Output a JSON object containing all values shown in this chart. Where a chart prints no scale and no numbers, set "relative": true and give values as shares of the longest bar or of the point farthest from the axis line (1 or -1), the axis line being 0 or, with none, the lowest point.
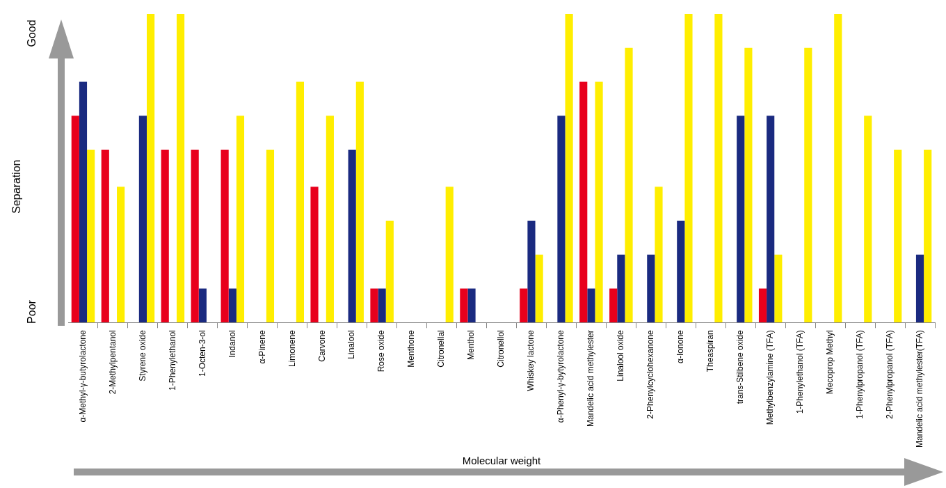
{
  "chart_data": {
    "type": "bar",
    "relative": true,
    "xlabel": "Molecular weight",
    "ylabel": "Separation",
    "annotations": [
      "Good",
      "Poor"
    ],
    "grid": false,
    "legend": false,
    "categories": [
      "α-Methyl-γ-butyrolactone",
      "2-Methylpentanol",
      "Styrene oxide",
      "1-Phenylethanol",
      "1-Octen-3-ol",
      "Indanol",
      "α-Pinene",
      "Limonene",
      "Carvone",
      "Linalool",
      "Rose oxide",
      "Menthone",
      "Citronellal",
      "Menthol",
      "Citronellol",
      "Whiskey lactone",
      "α-Phenyl-γ-bytyrolactone",
      "Mandelic acid methylester",
      "Linalool oxide",
      "2-Phenylcyclohexanone",
      "α-Ionone",
      "Theaspiran",
      "trans-Stilbene oxide",
      "Methylbenzylamine (TFA)",
      "1-Phenylethanol (TFA)",
      "Mecoprop Methyl",
      "1-Phenylpropanol (TFA)",
      "2-Phenylpropanol (TFA)",
      "Mandelic acid methylester(TFA)"
    ],
    "series": [
      {
        "color": "#e8001c",
        "values": [
          0.67,
          0.56,
          0,
          0.56,
          0.56,
          0.56,
          0,
          0,
          0.44,
          0,
          0.11,
          0,
          0,
          0.11,
          0,
          0.11,
          0,
          0.78,
          0.11,
          0,
          0,
          0,
          0,
          0.11,
          0,
          0,
          0,
          0,
          0
        ]
      },
      {
        "color": "#1a2a80",
        "values": [
          0.78,
          0,
          0.67,
          0,
          0.11,
          0.11,
          0,
          0,
          0,
          0.56,
          0.11,
          0,
          0,
          0.11,
          0,
          0.33,
          0.67,
          0.11,
          0.22,
          0.22,
          0.33,
          0,
          0.67,
          0.67,
          0,
          0,
          0,
          0,
          0.22
        ]
      },
      {
        "color": "#ffee00",
        "values": [
          0.56,
          0.44,
          1,
          1,
          0,
          0.67,
          0.56,
          0.78,
          0.67,
          0.78,
          0.33,
          0,
          0.44,
          0,
          0,
          0.22,
          1,
          0.78,
          0.89,
          0.44,
          1,
          1,
          0.89,
          0.22,
          0.89,
          1,
          0.67,
          0.56,
          0.56
        ]
      }
    ]
  }
}
